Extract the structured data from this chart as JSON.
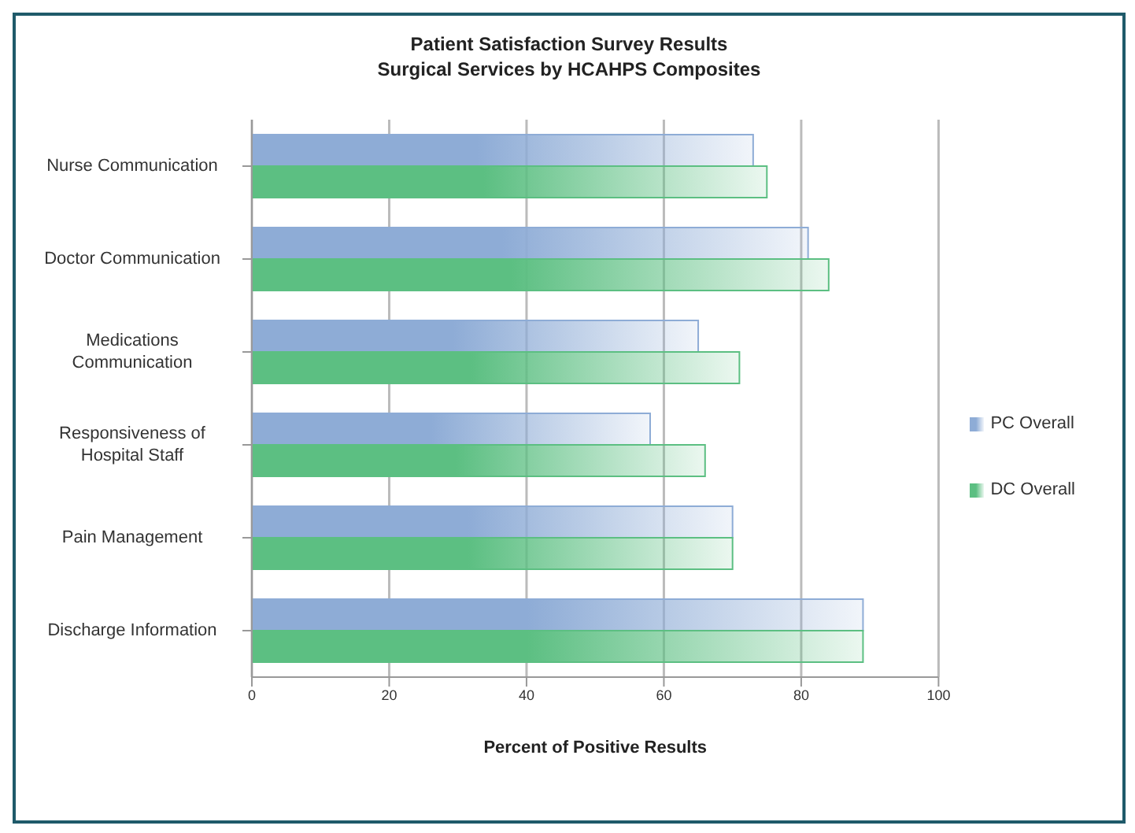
{
  "chart_data": {
    "type": "bar",
    "orientation": "horizontal",
    "title": "Patient Satisfaction Survey Results",
    "subtitle": "Surgical Services by HCAHPS Composites",
    "xlabel": "Percent of Positive Results",
    "categories": [
      "Nurse Communication",
      "Doctor Communication",
      "Medications Communication",
      "Responsiveness of Hospital Staff",
      "Pain Management",
      "Discharge Information"
    ],
    "series": [
      {
        "name": "PC Overall",
        "color": "#8eacd6",
        "values": [
          73,
          81,
          65,
          58,
          70,
          89
        ]
      },
      {
        "name": "DC Overall",
        "color": "#5cbf82",
        "values": [
          75,
          84,
          71,
          66,
          70,
          89
        ]
      }
    ],
    "xlim": [
      0,
      100
    ],
    "xticks": [
      0,
      20,
      40,
      60,
      80,
      100
    ],
    "grid": "x",
    "legend": "right"
  }
}
